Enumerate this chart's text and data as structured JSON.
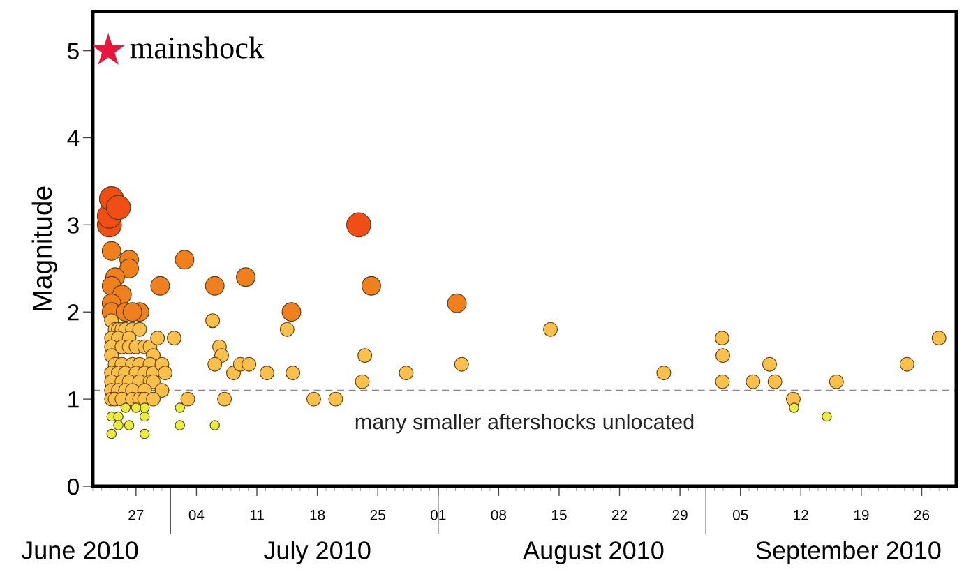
{
  "chart_data": {
    "type": "bubble",
    "ylabel": "Magnitude",
    "xlim": [
      "2010-06-22",
      "2010-09-30"
    ],
    "xticks": [
      {
        "value": "2010-06-27",
        "label": "27"
      },
      {
        "value": "2010-07-04",
        "label": "04"
      },
      {
        "value": "2010-07-11",
        "label": "11"
      },
      {
        "value": "2010-07-18",
        "label": "18"
      },
      {
        "value": "2010-07-25",
        "label": "25"
      },
      {
        "value": "2010-08-01",
        "label": "01"
      },
      {
        "value": "2010-08-08",
        "label": "08"
      },
      {
        "value": "2010-08-15",
        "label": "15"
      },
      {
        "value": "2010-08-22",
        "label": "22"
      },
      {
        "value": "2010-08-29",
        "label": "29"
      },
      {
        "value": "2010-09-05",
        "label": "05"
      },
      {
        "value": "2010-09-12",
        "label": "12"
      },
      {
        "value": "2010-09-19",
        "label": "19"
      },
      {
        "value": "2010-09-26",
        "label": "26"
      }
    ],
    "ylim": [
      0,
      5.45
    ],
    "yticks": [
      0,
      1,
      2,
      3,
      4,
      5
    ],
    "grid": false,
    "legend": false,
    "annotations": [
      "June 2010",
      "July 2010",
      "August 2010",
      "September 2010"
    ],
    "ref_lines": [
      {
        "axis": "y",
        "value": 1.1,
        "label": "many smaller aftershocks unlocated",
        "color": "#888888",
        "line_style": "dashed"
      }
    ],
    "series": [
      {
        "name": "mainshock",
        "type": "scatter",
        "marker": "star",
        "color": "#e8163c",
        "x": [
          "2010-06-23T19:00"
        ],
        "values": [
          5
        ]
      },
      {
        "color": "#f04e14",
        "x": [
          "2010-06-23T22:00",
          "2010-06-23T22:00",
          "2010-06-24T04:00",
          "2010-06-24T23:00",
          "2010-07-22T19:00"
        ],
        "values": [
          3.0,
          3.1,
          3.3,
          3.2,
          3.0
        ],
        "sizes": [
          1,
          1,
          1,
          1,
          1
        ]
      },
      {
        "color": "#f07f1e",
        "x": [
          "2010-06-24T04:00",
          "2010-06-26T05:00",
          "2010-06-26T05:00",
          "2010-06-24T14:00",
          "2010-06-24T04:00",
          "2010-06-25T09:00",
          "2010-06-24T04:00",
          "2010-06-24T04:00",
          "2010-06-25T19:00",
          "2010-06-27T10:00",
          "2010-06-26T14:00",
          "2010-06-29T19:00",
          "2010-07-02T15:00",
          "2010-07-06T03:00",
          "2010-07-09T17:00",
          "2010-07-15T00:00",
          "2010-07-24T06:00",
          "2010-08-03T04:00"
        ],
        "values": [
          2.7,
          2.6,
          2.5,
          2.4,
          2.3,
          2.2,
          2.1,
          2.0,
          2.0,
          2.0,
          2.0,
          2.3,
          2.6,
          2.3,
          2.4,
          2.0,
          2.3,
          2.1
        ],
        "sizes": [
          0.6,
          0.6,
          0.6,
          0.6,
          0.6,
          0.6,
          0.6,
          0.6,
          0.6,
          0.6,
          0.6,
          0.6,
          0.6,
          0.6,
          0.6,
          0.6,
          0.6,
          0.6
        ]
      },
      {
        "color": "#fbc04a",
        "x": [
          "2010-06-24T04:00",
          "2010-06-24T14:00",
          "2010-06-24T23:00",
          "2010-06-25T09:00",
          "2010-06-25T19:00",
          "2010-06-26T14:00",
          "2010-06-27T10:00",
          "2010-06-24T04:00",
          "2010-06-24T23:00",
          "2010-06-26T05:00",
          "2010-06-24T04:00",
          "2010-06-25T09:00",
          "2010-06-26T05:00",
          "2010-06-27T00:00",
          "2010-06-28T00:00",
          "2010-06-28T15:00",
          "2010-06-29T00:00",
          "2010-06-24T04:00",
          "2010-06-24T14:00",
          "2010-06-25T09:00",
          "2010-06-26T14:00",
          "2010-06-27T10:00",
          "2010-06-28T15:00",
          "2010-06-24T04:00",
          "2010-06-24T23:00",
          "2010-06-25T19:00",
          "2010-06-27T00:00",
          "2010-06-28T00:00",
          "2010-06-29T00:00",
          "2010-06-24T04:00",
          "2010-06-25T09:00",
          "2010-06-26T05:00",
          "2010-06-27T10:00",
          "2010-06-28T15:00",
          "2010-06-29T00:00",
          "2010-06-24T04:00",
          "2010-06-24T23:00",
          "2010-06-25T19:00",
          "2010-06-26T14:00",
          "2010-06-28T00:00",
          "2010-06-30T00:00",
          "2010-06-24T04:00",
          "2010-06-24T14:00",
          "2010-06-25T09:00",
          "2010-06-26T14:00",
          "2010-06-27T10:00",
          "2010-06-28T00:00",
          "2010-06-29T00:00",
          "2010-06-29T12:00",
          "2010-06-30T00:00",
          "2010-06-30T09:00",
          "2010-07-01T10:00",
          "2010-07-03T00:00",
          "2010-07-05T21:00",
          "2010-07-06T16:00",
          "2010-07-06T22:00",
          "2010-07-06T03:00",
          "2010-07-07T06:00",
          "2010-07-08T07:00",
          "2010-07-09T02:00",
          "2010-07-10T02:00",
          "2010-07-12T04:00",
          "2010-07-14T12:00",
          "2010-07-15T04:00",
          "2010-07-17T14:00",
          "2010-07-20T03:00",
          "2010-07-23T05:00",
          "2010-07-23T12:00",
          "2010-07-28T07:00",
          "2010-08-03T17:00",
          "2010-08-14T00:00",
          "2010-08-27T03:00",
          "2010-09-02T21:00",
          "2010-09-02T23:00",
          "2010-09-02T22:00",
          "2010-09-06T11:00",
          "2010-09-08T09:00",
          "2010-09-09T00:00",
          "2010-09-11T03:00",
          "2010-09-16T03:00",
          "2010-09-24T07:00",
          "2010-09-28T00:00"
        ],
        "values": [
          1.9,
          1.8,
          1.8,
          1.8,
          1.8,
          1.8,
          1.8,
          1.7,
          1.7,
          1.7,
          1.6,
          1.6,
          1.6,
          1.6,
          1.6,
          1.6,
          1.5,
          1.5,
          1.4,
          1.4,
          1.4,
          1.4,
          1.4,
          1.3,
          1.3,
          1.3,
          1.3,
          1.3,
          1.3,
          1.2,
          1.2,
          1.2,
          1.2,
          1.2,
          1.2,
          1.1,
          1.1,
          1.1,
          1.1,
          1.1,
          1.1,
          1.0,
          1.0,
          1.0,
          1.0,
          1.0,
          1.0,
          1.0,
          1.7,
          1.4,
          1.3,
          1.7,
          1.0,
          1.9,
          1.6,
          1.5,
          1.4,
          1.0,
          1.3,
          1.4,
          1.4,
          1.3,
          1.8,
          1.3,
          1.0,
          1.0,
          1.2,
          1.5,
          1.3,
          1.4,
          1.8,
          1.3,
          1.7,
          1.5,
          1.2,
          1.2,
          1.4,
          1.2,
          1.0,
          1.2,
          1.4,
          1.7
        ],
        "sizes": [
          0.33,
          0.33,
          0.33,
          0.33,
          0.33,
          0.33,
          0.33,
          0.33,
          0.33,
          0.33,
          0.33,
          0.33,
          0.33,
          0.33,
          0.33,
          0.33,
          0.33,
          0.33,
          0.33,
          0.33,
          0.33,
          0.33,
          0.33,
          0.33,
          0.33,
          0.33,
          0.33,
          0.33,
          0.33,
          0.33,
          0.33,
          0.33,
          0.33,
          0.33,
          0.33,
          0.33,
          0.33,
          0.33,
          0.33,
          0.33,
          0.33,
          0.33,
          0.33,
          0.33,
          0.33,
          0.33,
          0.33,
          0.33,
          0.33,
          0.33,
          0.33,
          0.33,
          0.33,
          0.33,
          0.33,
          0.33,
          0.33,
          0.33,
          0.33,
          0.33,
          0.33,
          0.33,
          0.33,
          0.33,
          0.33,
          0.33,
          0.33,
          0.33,
          0.33,
          0.33,
          0.33,
          0.33,
          0.33,
          0.33,
          0.33,
          0.33,
          0.33,
          0.33,
          0.33,
          0.33,
          0.33,
          0.33
        ]
      },
      {
        "color": "#e6ee3a",
        "x": [
          "2010-06-24T04:00",
          "2010-06-24T23:00",
          "2010-06-24T04:00",
          "2010-06-24T23:00",
          "2010-06-26T05:00",
          "2010-06-28T00:00",
          "2010-06-28T00:00",
          "2010-06-28T00:00",
          "2010-07-02T02:00",
          "2010-07-02T02:00",
          "2010-07-06T03:00",
          "2010-09-11T05:00",
          "2010-09-15T00:00",
          "2010-06-25T19:00",
          "2010-06-27T00:00"
        ],
        "values": [
          0.8,
          0.8,
          0.6,
          0.7,
          0.7,
          0.8,
          0.9,
          0.6,
          0.9,
          0.7,
          0.7,
          0.9,
          0.8,
          0.9,
          0.9
        ],
        "sizes": [
          0.15,
          0.15,
          0.15,
          0.15,
          0.15,
          0.15,
          0.15,
          0.15,
          0.15,
          0.15,
          0.15,
          0.15,
          0.15,
          0.15,
          0.15
        ]
      }
    ]
  }
}
